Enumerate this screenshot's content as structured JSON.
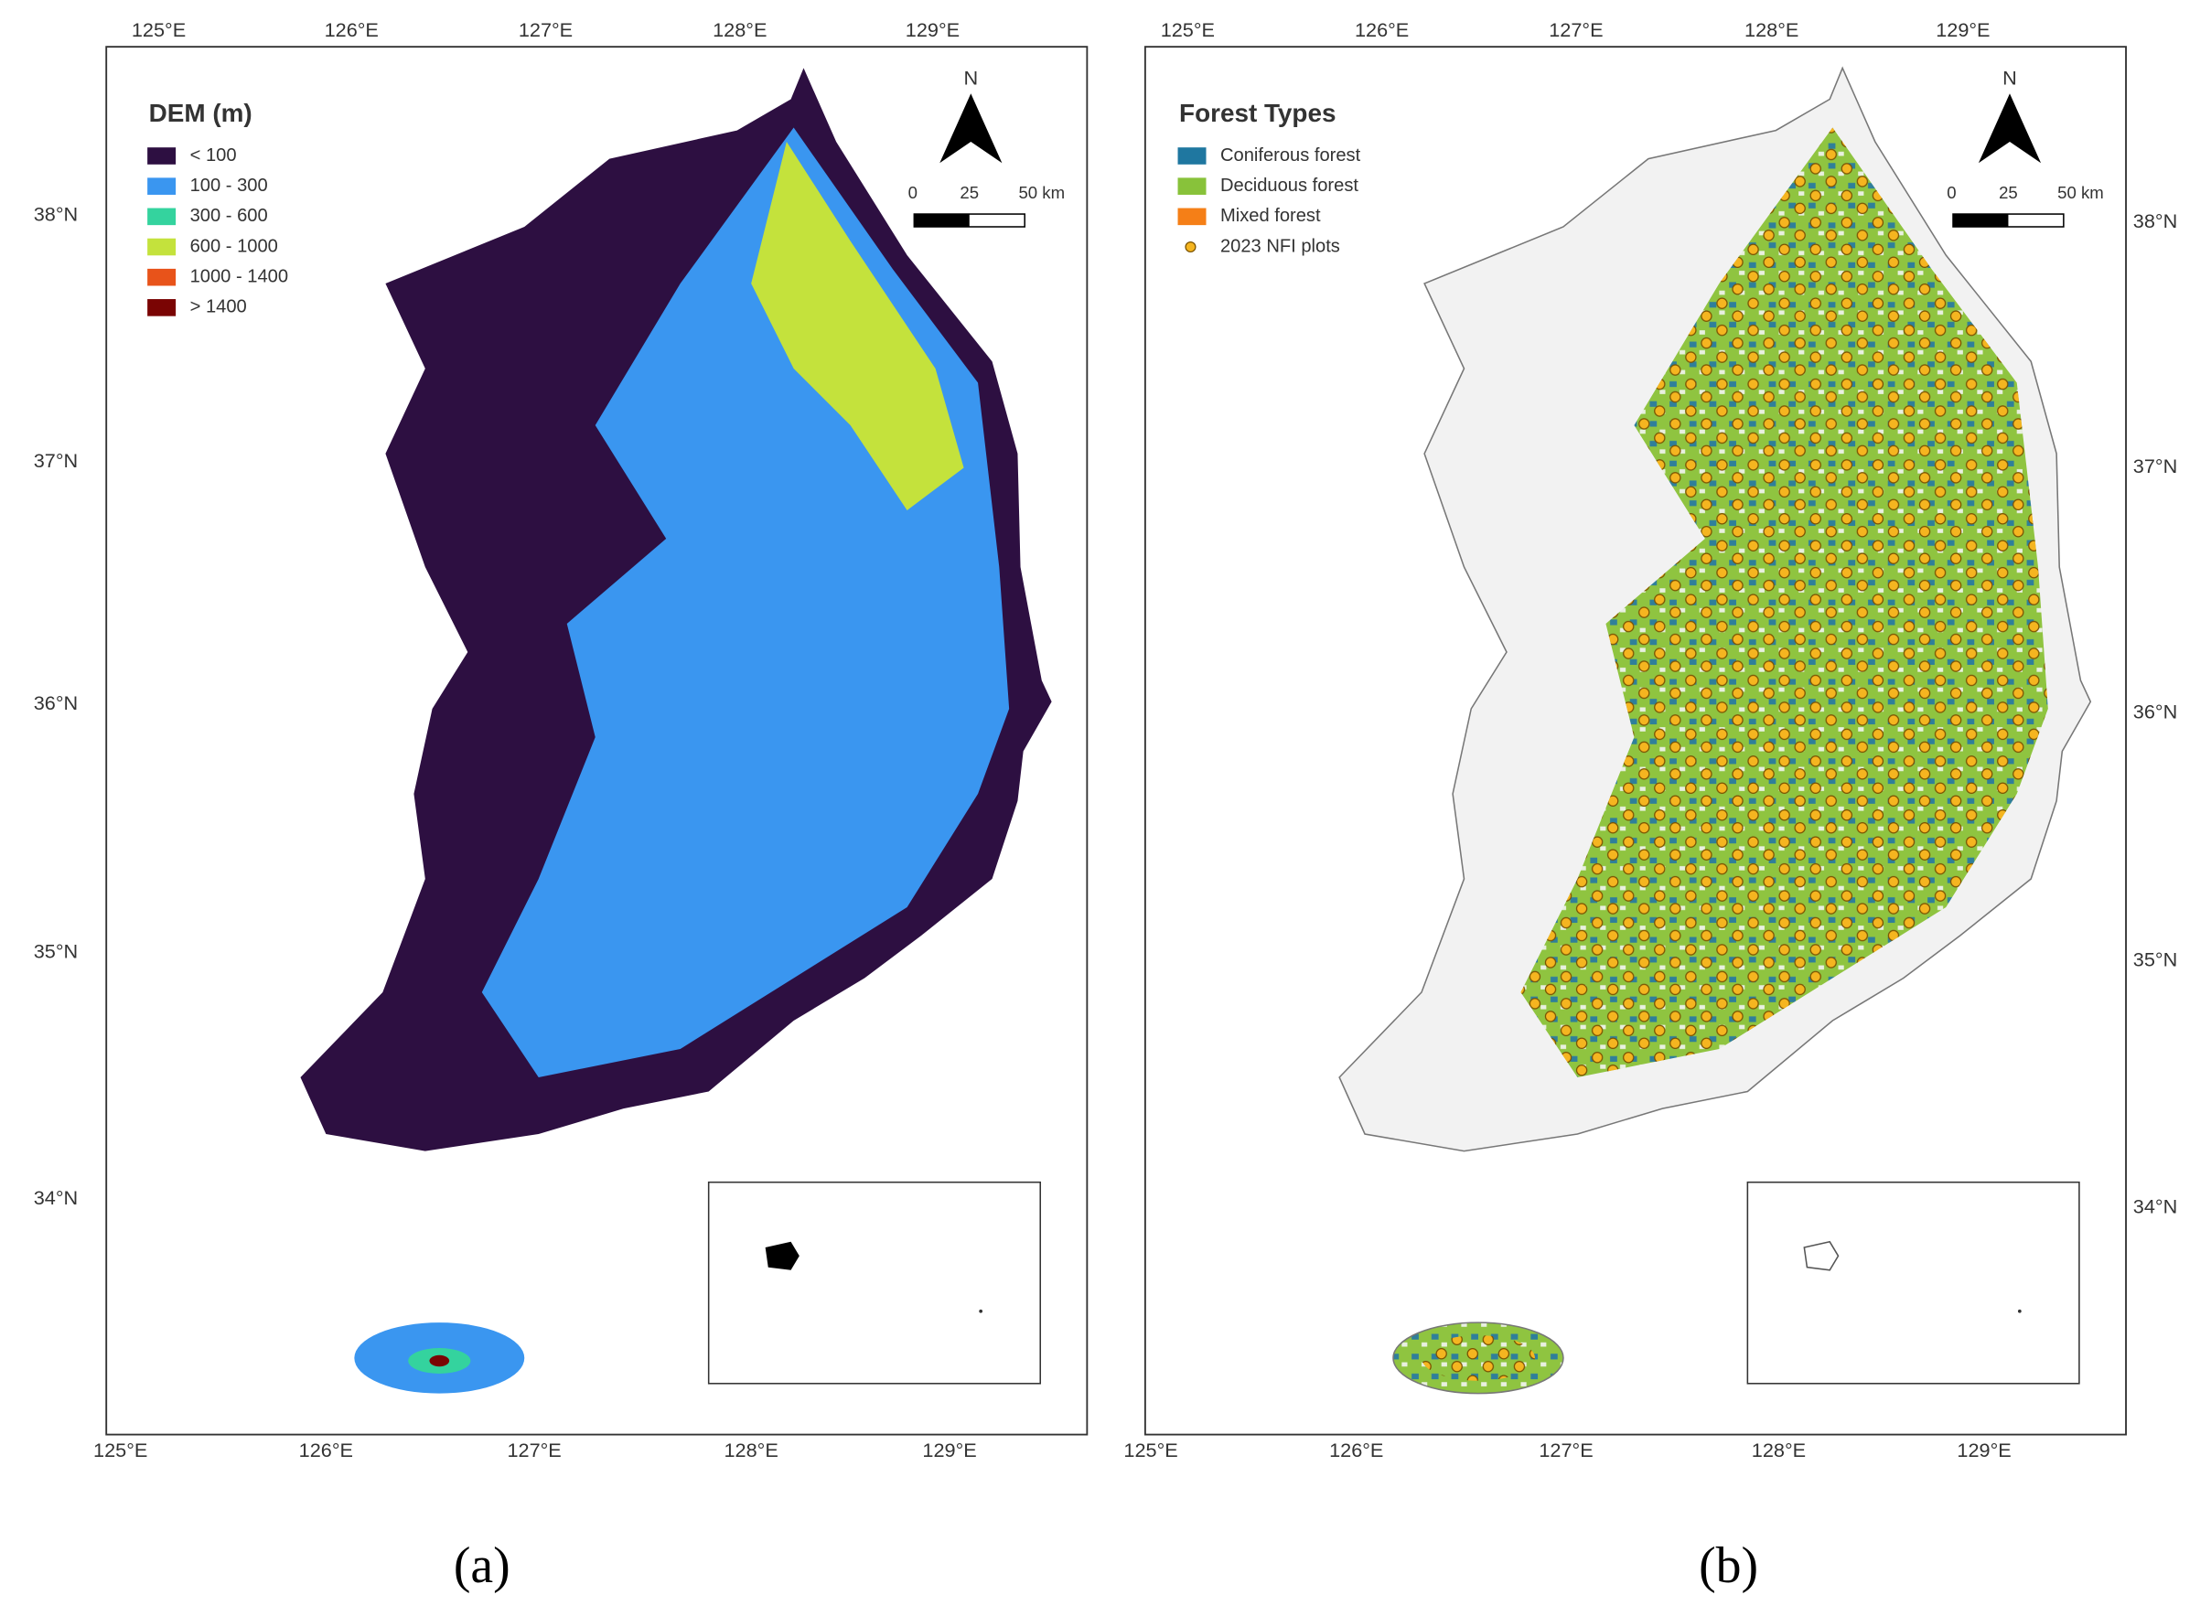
{
  "panels": [
    {
      "caption": "(a)",
      "lon_labels": [
        "125°E",
        "126°E",
        "127°E",
        "128°E",
        "129°E"
      ],
      "lat_labels": [
        "38°N",
        "37°N",
        "36°N",
        "35°N",
        "34°N"
      ],
      "legend": {
        "title": "DEM (m)",
        "items": [
          {
            "label": "< 100",
            "color": "#2d0f41"
          },
          {
            "label": "100 - 300",
            "color": "#3a96f0"
          },
          {
            "label": "300 - 600",
            "color": "#34d39e"
          },
          {
            "label": "600 - 1000",
            "color": "#c4e23c"
          },
          {
            "label": "1000 - 1400",
            "color": "#e8531a"
          },
          {
            "label": "> 1400",
            "color": "#7a0403"
          }
        ]
      },
      "north": "N",
      "scale_labels": [
        "0",
        "25",
        "50 km"
      ]
    },
    {
      "caption": "(b)",
      "lon_labels": [
        "125°E",
        "126°E",
        "127°E",
        "128°E",
        "129°E"
      ],
      "lat_labels": [
        "38°N",
        "37°N",
        "36°N",
        "35°N",
        "34°N"
      ],
      "legend": {
        "title": "Forest Types",
        "items": [
          {
            "label": "Coniferous forest",
            "color": "#1f77a0"
          },
          {
            "label": "Deciduous forest",
            "color": "#88c23a"
          },
          {
            "label": "Mixed forest",
            "color": "#f57f17"
          },
          {
            "label": "2023 NFI plots",
            "color": "#f5b520"
          }
        ]
      },
      "north": "N",
      "scale_labels": [
        "0",
        "25",
        "50 km"
      ]
    }
  ]
}
